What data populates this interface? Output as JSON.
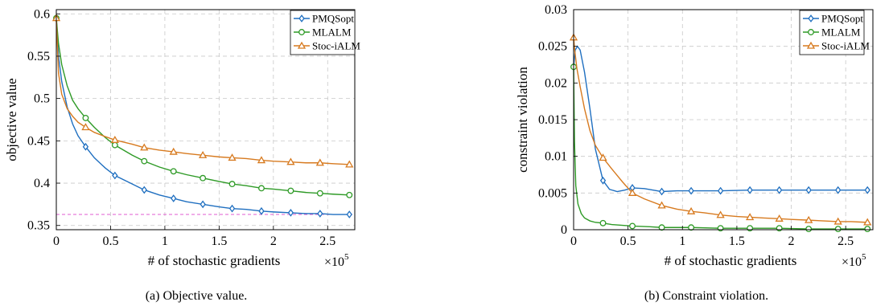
{
  "colors": {
    "PMQSopt": "#1f6fc0",
    "MLALM": "#2e9a26",
    "Stoc-iALM": "#d77a1f",
    "reference_line": "#e05bd0"
  },
  "chart_data": [
    {
      "type": "line",
      "caption": "(a) Objective value.",
      "xlabel": "# of stochastic gradients",
      "ylabel": "objective value",
      "x_exponent": "×10^5",
      "x_exponent_base": "×10",
      "x_exponent_power": "5",
      "xlim": [
        0,
        2.75
      ],
      "ylim": [
        0.345,
        0.605
      ],
      "xticks": [
        0,
        0.5,
        1,
        1.5,
        2,
        2.5
      ],
      "xtick_labels": [
        "0",
        "0.5",
        "1",
        "1.5",
        "2",
        "2.5"
      ],
      "yticks": [
        0.35,
        0.4,
        0.45,
        0.5,
        0.55,
        0.6
      ],
      "ytick_labels": [
        "0.35",
        "0.4",
        "0.45",
        "0.5",
        "0.55",
        "0.6"
      ],
      "grid": true,
      "legend": "top-right",
      "reference_line": {
        "y": 0.363,
        "style": "dashed"
      },
      "series": [
        {
          "name": "PMQSopt",
          "marker": "diamond",
          "x": [
            0,
            0.02,
            0.05,
            0.1,
            0.15,
            0.2,
            0.27,
            0.35,
            0.45,
            0.54,
            0.7,
            0.81,
            0.95,
            1.08,
            1.2,
            1.35,
            1.5,
            1.62,
            1.75,
            1.89,
            2.0,
            2.16,
            2.3,
            2.43,
            2.55,
            2.7
          ],
          "y": [
            0.595,
            0.55,
            0.52,
            0.49,
            0.47,
            0.456,
            0.443,
            0.43,
            0.418,
            0.409,
            0.399,
            0.392,
            0.386,
            0.382,
            0.378,
            0.375,
            0.372,
            0.37,
            0.369,
            0.367,
            0.366,
            0.365,
            0.364,
            0.364,
            0.363,
            0.363
          ],
          "marker_x": [
            0,
            0.27,
            0.54,
            0.81,
            1.08,
            1.35,
            1.62,
            1.89,
            2.16,
            2.43,
            2.7
          ]
        },
        {
          "name": "MLALM",
          "marker": "circle",
          "x": [
            0,
            0.02,
            0.05,
            0.1,
            0.15,
            0.2,
            0.27,
            0.35,
            0.45,
            0.54,
            0.7,
            0.81,
            0.95,
            1.08,
            1.2,
            1.35,
            1.5,
            1.62,
            1.75,
            1.89,
            2.0,
            2.16,
            2.3,
            2.43,
            2.55,
            2.7
          ],
          "y": [
            0.595,
            0.565,
            0.54,
            0.515,
            0.498,
            0.488,
            0.477,
            0.466,
            0.454,
            0.445,
            0.433,
            0.426,
            0.419,
            0.414,
            0.41,
            0.406,
            0.402,
            0.399,
            0.397,
            0.394,
            0.393,
            0.391,
            0.389,
            0.388,
            0.387,
            0.386
          ],
          "marker_x": [
            0,
            0.27,
            0.54,
            0.81,
            1.08,
            1.35,
            1.62,
            1.89,
            2.16,
            2.43,
            2.7
          ]
        },
        {
          "name": "Stoc-iALM",
          "marker": "triangle",
          "x": [
            0,
            0.02,
            0.05,
            0.1,
            0.15,
            0.2,
            0.27,
            0.35,
            0.45,
            0.54,
            0.7,
            0.81,
            0.95,
            1.08,
            1.2,
            1.35,
            1.5,
            1.62,
            1.75,
            1.89,
            2.0,
            2.16,
            2.3,
            2.43,
            2.55,
            2.7
          ],
          "y": [
            0.595,
            0.53,
            0.505,
            0.488,
            0.479,
            0.472,
            0.466,
            0.46,
            0.455,
            0.451,
            0.446,
            0.442,
            0.439,
            0.437,
            0.435,
            0.433,
            0.431,
            0.43,
            0.429,
            0.427,
            0.426,
            0.425,
            0.424,
            0.424,
            0.423,
            0.422
          ],
          "marker_x": [
            0,
            0.27,
            0.54,
            0.81,
            1.08,
            1.35,
            1.62,
            1.89,
            2.16,
            2.43,
            2.7
          ]
        }
      ]
    },
    {
      "type": "line",
      "caption": "(b) Constraint violation.",
      "xlabel": "# of stochastic gradients",
      "ylabel": "constraint violation",
      "x_exponent": "×10^5",
      "x_exponent_base": "×10",
      "x_exponent_power": "5",
      "xlim": [
        0,
        2.75
      ],
      "ylim": [
        0,
        0.03
      ],
      "xticks": [
        0,
        0.5,
        1,
        1.5,
        2,
        2.5
      ],
      "xtick_labels": [
        "0",
        "0.5",
        "1",
        "1.5",
        "2",
        "2.5"
      ],
      "yticks": [
        0,
        0.005,
        0.01,
        0.015,
        0.02,
        0.025,
        0.03
      ],
      "ytick_labels": [
        "0",
        "0.005",
        "0.01",
        "0.015",
        "0.02",
        "0.025",
        "0.03"
      ],
      "grid": true,
      "legend": "top-right",
      "series": [
        {
          "name": "PMQSopt",
          "marker": "diamond",
          "x": [
            0,
            0.015,
            0.035,
            0.06,
            0.1,
            0.15,
            0.2,
            0.27,
            0.33,
            0.4,
            0.47,
            0.54,
            0.65,
            0.81,
            0.95,
            1.08,
            1.35,
            1.62,
            1.89,
            2.16,
            2.43,
            2.7
          ],
          "y": [
            0.0222,
            0.0245,
            0.025,
            0.0245,
            0.0215,
            0.0165,
            0.011,
            0.0067,
            0.0055,
            0.0052,
            0.0054,
            0.0057,
            0.0056,
            0.0052,
            0.0053,
            0.0053,
            0.0053,
            0.0054,
            0.0054,
            0.0054,
            0.0054,
            0.0054
          ],
          "marker_x": [
            0,
            0.27,
            0.54,
            0.81,
            1.08,
            1.35,
            1.62,
            1.89,
            2.16,
            2.43,
            2.7
          ]
        },
        {
          "name": "MLALM",
          "marker": "circle",
          "x": [
            0,
            0.008,
            0.02,
            0.04,
            0.07,
            0.1,
            0.15,
            0.2,
            0.27,
            0.35,
            0.45,
            0.54,
            0.7,
            0.81,
            1.08,
            1.35,
            1.62,
            1.89,
            2.16,
            2.43,
            2.7
          ],
          "y": [
            0.0222,
            0.012,
            0.006,
            0.0035,
            0.0022,
            0.0016,
            0.0012,
            0.001,
            0.0009,
            0.0007,
            0.0006,
            0.0005,
            0.0004,
            0.0003,
            0.0003,
            0.0002,
            0.0002,
            0.0002,
            0.0001,
            0.0001,
            0.0001
          ],
          "marker_x": [
            0,
            0.27,
            0.54,
            0.81,
            1.08,
            1.35,
            1.62,
            1.89,
            2.16,
            2.43,
            2.7
          ]
        },
        {
          "name": "Stoc-iALM",
          "marker": "triangle",
          "x": [
            0,
            0.01,
            0.03,
            0.06,
            0.1,
            0.15,
            0.2,
            0.27,
            0.35,
            0.45,
            0.54,
            0.65,
            0.81,
            0.95,
            1.08,
            1.2,
            1.35,
            1.5,
            1.62,
            1.75,
            1.89,
            2.0,
            2.16,
            2.3,
            2.43,
            2.55,
            2.7
          ],
          "y": [
            0.0262,
            0.0245,
            0.022,
            0.0195,
            0.0165,
            0.0135,
            0.0115,
            0.0098,
            0.0083,
            0.0065,
            0.005,
            0.0042,
            0.0033,
            0.0028,
            0.0025,
            0.0023,
            0.002,
            0.0018,
            0.0017,
            0.0016,
            0.0015,
            0.0014,
            0.0013,
            0.0012,
            0.0011,
            0.0011,
            0.001
          ],
          "marker_x": [
            0,
            0.27,
            0.54,
            0.81,
            1.08,
            1.35,
            1.62,
            1.89,
            2.16,
            2.43,
            2.7
          ]
        }
      ]
    }
  ]
}
